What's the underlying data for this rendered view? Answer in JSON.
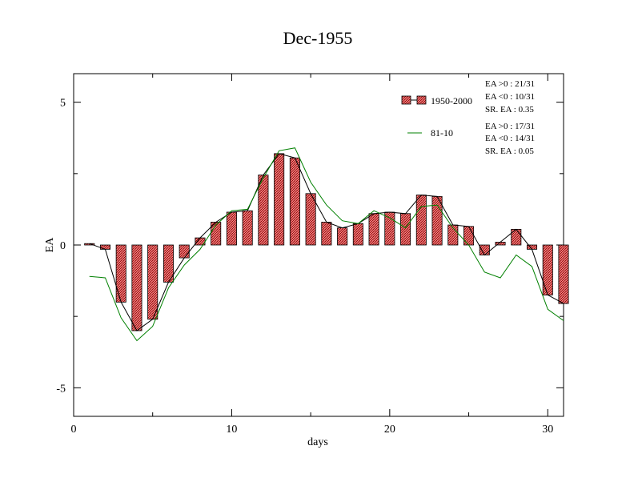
{
  "chart_data": {
    "type": "bar",
    "title": "Dec-1955",
    "xlabel": "days",
    "ylabel": "EA",
    "xlim": [
      0,
      31
    ],
    "ylim": [
      -6,
      6
    ],
    "x_ticks": [
      0,
      10,
      20,
      30
    ],
    "y_ticks": [
      -5,
      0,
      5
    ],
    "x_tick_labels": [
      "0",
      "10",
      "20",
      "30"
    ],
    "y_tick_labels": [
      "-5",
      "0",
      "5"
    ],
    "grid": false,
    "legend_position": "top-right",
    "days": [
      1,
      2,
      3,
      4,
      5,
      6,
      7,
      8,
      9,
      10,
      11,
      12,
      13,
      14,
      15,
      16,
      17,
      18,
      19,
      20,
      21,
      22,
      23,
      24,
      25,
      26,
      27,
      28,
      29,
      30,
      31
    ],
    "series": [
      {
        "name": "1950-2000",
        "style": "bar-with-line",
        "bar_fill": "#f08080",
        "bar_hatch": "#8b0000",
        "line_color": "#000000",
        "values": [
          0.05,
          -0.15,
          -2.0,
          -3.0,
          -2.6,
          -1.3,
          -0.45,
          0.25,
          0.8,
          1.15,
          1.2,
          2.45,
          3.2,
          3.05,
          1.8,
          0.8,
          0.6,
          0.75,
          1.1,
          1.15,
          1.1,
          1.75,
          1.7,
          0.7,
          0.65,
          -0.35,
          0.1,
          0.55,
          -0.15,
          -1.75,
          -2.05
        ]
      },
      {
        "name": "81-10",
        "style": "line",
        "line_color": "#008000",
        "values": [
          -1.1,
          -1.15,
          -2.55,
          -3.35,
          -2.85,
          -1.5,
          -0.7,
          -0.15,
          0.7,
          1.2,
          1.25,
          2.35,
          3.3,
          3.4,
          2.2,
          1.4,
          0.85,
          0.75,
          1.2,
          0.95,
          0.6,
          1.35,
          1.4,
          0.6,
          0.0,
          -0.95,
          -1.15,
          -0.35,
          -0.75,
          -2.25,
          -2.65
        ]
      }
    ],
    "stats": [
      {
        "ea_pos": "EA >0 : 21/31",
        "ea_neg": "EA <0 : 10/31",
        "sr": "SR. EA :  0.35"
      },
      {
        "ea_pos": "EA >0 : 17/31",
        "ea_neg": "EA <0 : 14/31",
        "sr": "SR. EA :  0.05"
      }
    ]
  }
}
